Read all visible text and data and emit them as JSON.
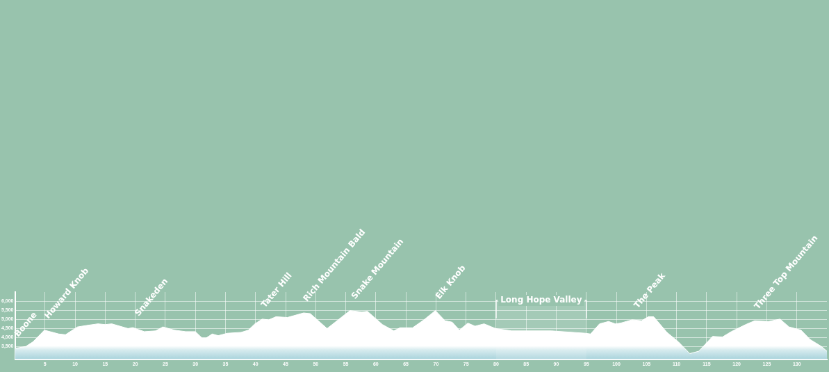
{
  "chart_data": {
    "type": "area",
    "color": "#ffffff",
    "x": [
      0,
      1.8,
      3,
      4.9,
      7.3,
      8.4,
      10.4,
      11.9,
      13.8,
      15,
      16.1,
      18.8,
      19.6,
      21.5,
      23.4,
      24.6,
      26.5,
      28.4,
      30,
      31.1,
      31.8,
      32.8,
      33.8,
      35.3,
      37.6,
      38.8,
      39.9,
      41.1,
      42.2,
      43.4,
      45.3,
      48,
      49.1,
      51.9,
      55.7,
      57.7,
      58.6,
      61.1,
      63,
      64,
      66.1,
      68,
      69.9,
      71.5,
      72.7,
      73.9,
      75.3,
      76.5,
      78,
      79.9,
      82.6,
      89.2,
      94.9,
      95.7,
      97.2,
      98.7,
      99.8,
      100.7,
      102.6,
      104.2,
      105.3,
      106.2,
      108.4,
      110.3,
      112.2,
      113.7,
      116,
      117.6,
      119.1,
      121.5,
      123,
      125.3,
      127.2,
      128.7,
      130.7,
      132.2,
      134.1,
      135
    ],
    "values": [
      3400,
      3500,
      3760,
      4400,
      4190,
      4150,
      4580,
      4660,
      4750,
      4710,
      4750,
      4490,
      4540,
      4320,
      4360,
      4580,
      4400,
      4320,
      4320,
      3970,
      3970,
      4190,
      4100,
      4230,
      4280,
      4400,
      4750,
      5010,
      4970,
      5140,
      5100,
      5350,
      5310,
      4490,
      5480,
      5400,
      5440,
      4710,
      4360,
      4530,
      4530,
      4970,
      5480,
      4920,
      4840,
      4400,
      4790,
      4620,
      4750,
      4490,
      4360,
      4360,
      4230,
      4190,
      4750,
      4880,
      4750,
      4790,
      4970,
      4920,
      5140,
      5140,
      4280,
      3760,
      3110,
      3240,
      4060,
      4020,
      4320,
      4710,
      4920,
      4880,
      5010,
      4580,
      4400,
      3890,
      3500,
      3240
    ],
    "xlim": [
      0,
      135
    ],
    "xticks": [
      5,
      10,
      15,
      20,
      25,
      30,
      35,
      40,
      45,
      50,
      55,
      60,
      65,
      70,
      75,
      80,
      85,
      90,
      95,
      100,
      105,
      110,
      115,
      120,
      125,
      130
    ],
    "ylim": [
      2800,
      6500
    ],
    "yticks": [
      {
        "value": 3500,
        "label": "3,500"
      },
      {
        "value": 4000,
        "label": "4,000"
      },
      {
        "value": 4500,
        "label": "4,500"
      },
      {
        "value": 5000,
        "label": "5,000"
      },
      {
        "value": 5500,
        "label": "5,500"
      },
      {
        "value": 6000,
        "label": "6,000"
      }
    ],
    "grid": true,
    "annotations": [
      {
        "text": "Boone",
        "x": 0,
        "y": 3400
      },
      {
        "text": "Howard Knob",
        "x": 5,
        "y": 4400
      },
      {
        "text": "Snakeden",
        "x": 20,
        "y": 4540
      },
      {
        "text": "Tater Hill",
        "x": 41,
        "y": 5010
      },
      {
        "text": "Rich Mountain Bald",
        "x": 48,
        "y": 5350
      },
      {
        "text": "Snake Mountain",
        "x": 56,
        "y": 5480
      },
      {
        "text": "Elk Knob",
        "x": 70,
        "y": 5480
      },
      {
        "text": "The Peak",
        "x": 103,
        "y": 4970
      },
      {
        "text": "Three Top Mountain",
        "x": 123,
        "y": 4920
      }
    ],
    "bands": [
      {
        "axis": "x",
        "from": 80,
        "to": 95,
        "label": "Long Hope Valley"
      }
    ]
  }
}
